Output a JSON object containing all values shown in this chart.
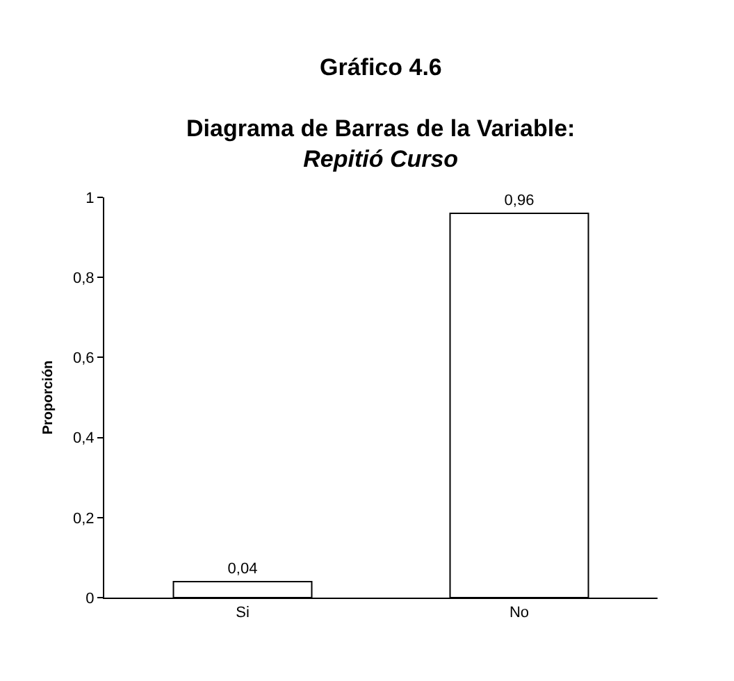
{
  "chart_data": {
    "type": "bar",
    "title": "Gráfico 4.6",
    "subtitle": "Diagrama de Barras de la Variable:\nRepitió Curso",
    "ylabel": "Proporción",
    "categories": [
      "Si",
      "No"
    ],
    "values": [
      0.04,
      0.96
    ],
    "color": "#ffffff",
    "value_labels": [
      "0,04",
      "0,96"
    ],
    "ylim": [
      0,
      1
    ],
    "yticks": [
      0,
      {
        "value": 0.2,
        "label": "0,2"
      },
      {
        "value": 0.4,
        "label": "0,4"
      },
      {
        "value": 0.6,
        "label": "0,6"
      },
      {
        "value": 0.8,
        "label": "0,8"
      },
      1
    ]
  }
}
